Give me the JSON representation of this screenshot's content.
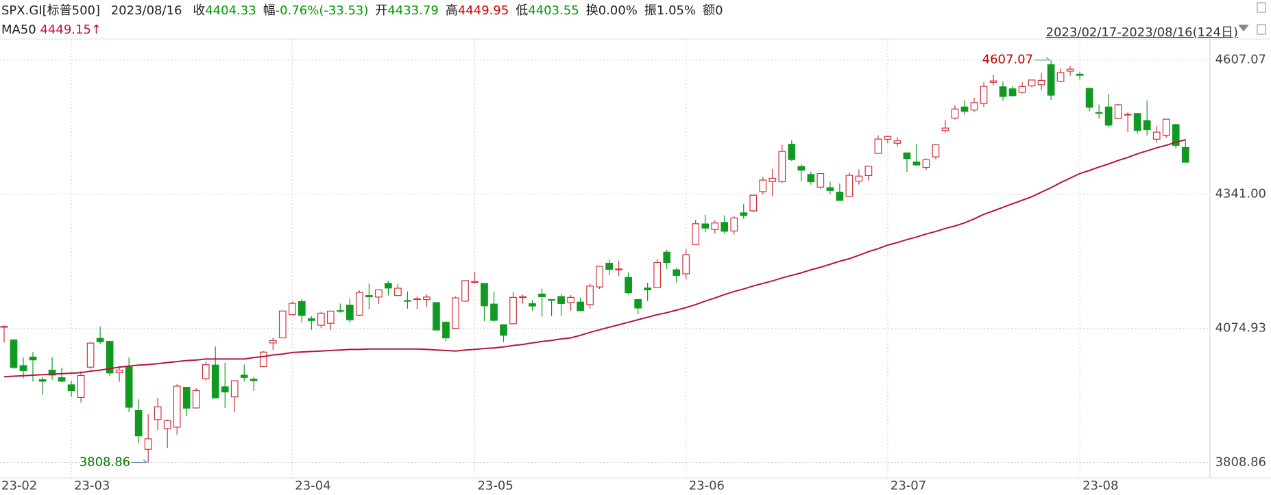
{
  "header": {
    "symbol": "SPX.GI[标普500]",
    "date": "2023/08/16",
    "fields": [
      {
        "key": "收",
        "value": "4404.33",
        "color": "#009900"
      },
      {
        "key": "幅",
        "value": "-0.76%(-33.53)",
        "color": "#009900"
      },
      {
        "key": "开",
        "value": "4433.79",
        "color": "#009900"
      },
      {
        "key": "高",
        "value": "4449.95",
        "color": "#cc0000"
      },
      {
        "key": "低",
        "value": "4403.55",
        "color": "#009900"
      },
      {
        "key": "换",
        "value": "0.00%",
        "color": "#222222"
      },
      {
        "key": "振",
        "value": "1.05%",
        "color": "#222222"
      },
      {
        "key": "额",
        "value": "0",
        "color": "#222222"
      }
    ],
    "range": "2023/02/17-2023/08/16(124日)"
  },
  "chart_data": {
    "type": "candlestick",
    "categories": [
      "23-02",
      null,
      null,
      null,
      null,
      null,
      null,
      "23-03",
      null,
      null,
      null,
      null,
      null,
      null,
      null,
      null,
      null,
      null,
      null,
      null,
      null,
      null,
      null,
      null,
      null,
      null,
      null,
      null,
      null,
      null,
      "23-04",
      null,
      null,
      null,
      null,
      null,
      null,
      null,
      null,
      null,
      null,
      null,
      null,
      null,
      null,
      null,
      null,
      null,
      null,
      "23-05",
      null,
      null,
      null,
      null,
      null,
      null,
      null,
      null,
      null,
      null,
      null,
      null,
      null,
      null,
      null,
      null,
      null,
      null,
      null,
      null,
      null,
      "23-06",
      null,
      null,
      null,
      null,
      null,
      null,
      null,
      null,
      null,
      null,
      null,
      null,
      null,
      null,
      null,
      null,
      null,
      null,
      null,
      null,
      "23-07",
      null,
      null,
      null,
      null,
      null,
      null,
      null,
      null,
      null,
      null,
      null,
      null,
      null,
      null,
      null,
      null,
      null,
      null,
      null,
      "23-08",
      null,
      null,
      null,
      null,
      null,
      null,
      null,
      null,
      null,
      null,
      null
    ],
    "open": [
      4077,
      4052,
      4001,
      4018,
      3973,
      3992,
      3977,
      3963,
      3938,
      3998,
      4055,
      4049,
      3987,
      3998,
      3912,
      3835,
      3894,
      3876,
      3879,
      3958,
      3917,
      3975,
      4002,
      3959,
      3939,
      3982,
      3974,
      3999,
      4046,
      4056,
      4102,
      4128,
      4094,
      4081,
      4085,
      4110,
      4121,
      4101,
      4140,
      4137,
      4164,
      4140,
      4130,
      4132,
      4132,
      4126,
      4087,
      4075,
      4129,
      4166,
      4164,
      4123,
      4082,
      4084,
      4136,
      4124,
      4143,
      4132,
      4138,
      4126,
      4127,
      4122,
      4157,
      4204,
      4191,
      4176,
      4132,
      4155,
      4156,
      4226,
      4191,
      4183,
      4241,
      4282,
      4271,
      4285,
      4268,
      4304,
      4308,
      4346,
      4366,
      4366,
      4440,
      4396,
      4380,
      4355,
      4354,
      4345,
      4337,
      4367,
      4378,
      4422,
      4450,
      4442,
      4423,
      4405,
      4394,
      4415,
      4467,
      4492,
      4514,
      4508,
      4521,
      4563,
      4554,
      4550,
      4543,
      4556,
      4558,
      4598,
      4565,
      4585,
      4579,
      4551,
      4503,
      4514,
      4491,
      4498,
      4501,
      4487,
      4450,
      4458,
      4479,
      4433.79
    ],
    "high": [
      4081,
      4052,
      4017,
      4028,
      3978,
      4018,
      3997,
      3971,
      3990,
      4048,
      4078,
      4050,
      4000,
      4017,
      3934,
      3905,
      3937,
      3894,
      3964,
      3959,
      3956,
      4009,
      4039,
      4007,
      3972,
      4003,
      3979,
      4030,
      4057,
      4110,
      4128,
      4133,
      4099,
      4108,
      4110,
      4124,
      4134,
      4150,
      4164,
      4152,
      4169,
      4163,
      4148,
      4138,
      4142,
      4126,
      4089,
      4138,
      4170,
      4187,
      4164,
      4148,
      4083,
      4147,
      4142,
      4131,
      4154,
      4133,
      4143,
      4141,
      4136,
      4164,
      4199,
      4212,
      4209,
      4186,
      4133,
      4165,
      4212,
      4231,
      4195,
      4232,
      4290,
      4300,
      4289,
      4299,
      4298,
      4322,
      4340,
      4375,
      4391,
      4439,
      4448,
      4400,
      4386,
      4382,
      4366,
      4362,
      4384,
      4390,
      4397,
      4458,
      4456,
      4454,
      4423,
      4441,
      4412,
      4440,
      4488,
      4517,
      4527,
      4532,
      4563,
      4578,
      4565,
      4555,
      4563,
      4568,
      4582,
      4607.07,
      4590,
      4595,
      4584,
      4552,
      4519,
      4540,
      4520,
      4504,
      4502,
      4527,
      4476,
      4490,
      4481,
      4449.95
    ],
    "low": [
      4047,
      3995,
      3976,
      3969,
      3943,
      3973,
      3968,
      3939,
      3928,
      3995,
      4044,
      3980,
      3969,
      3909,
      3847,
      3808.86,
      3873,
      3838,
      3864,
      3901,
      3916,
      3971,
      3936,
      3917,
      3909,
      3970,
      3951,
      3998,
      4032,
      4056,
      4102,
      4086,
      4072,
      4076,
      4072,
      4106,
      4086,
      4099,
      4113,
      4123,
      4140,
      4140,
      4114,
      4113,
      4117,
      4071,
      4049,
      4075,
      4127,
      4164,
      4089,
      4088,
      4048,
      4084,
      4124,
      4110,
      4098,
      4099,
      4099,
      4110,
      4109,
      4114,
      4153,
      4180,
      4179,
      4142,
      4103,
      4129,
      4155,
      4193,
      4166,
      4172,
      4241,
      4266,
      4263,
      4263,
      4261,
      4292,
      4305,
      4341,
      4337,
      4363,
      4407,
      4367,
      4360,
      4352,
      4341,
      4328,
      4336,
      4360,
      4368,
      4422,
      4442,
      4436,
      4385,
      4397,
      4389,
      4410,
      4463,
      4489,
      4499,
      4504,
      4514,
      4557,
      4527,
      4535,
      4541,
      4553,
      4547,
      4528,
      4563,
      4576,
      4568,
      4505,
      4491,
      4474,
      4491,
      4464,
      4461,
      4457,
      4443,
      4453,
      4432,
      4403.55
    ],
    "close": [
      4079.09,
      3997.34,
      3991.05,
      4012.32,
      3970.04,
      3982.24,
      3970.15,
      3951.39,
      3981.35,
      4045.64,
      4048.42,
      3986.37,
      3992.01,
      3918.32,
      3861.59,
      3855.76,
      3919.29,
      3891.93,
      3960.28,
      3916.64,
      3951.57,
      4002.87,
      3936.97,
      3948.72,
      3970.99,
      3977.53,
      3971.27,
      4027.81,
      4050.83,
      4109.31,
      4124.51,
      4100.6,
      4090.38,
      4105.02,
      4109.11,
      4108.94,
      4091.95,
      4146.22,
      4137.64,
      4151.32,
      4154.87,
      4154.52,
      4129.79,
      4133.52,
      4137.04,
      4071.63,
      4055.99,
      4135.35,
      4169.48,
      4167.87,
      4119.58,
      4090.75,
      4061.22,
      4136.25,
      4138.12,
      4119.17,
      4137.64,
      4130.62,
      4124.08,
      4136.28,
      4109.9,
      4158.77,
      4198.05,
      4191.98,
      4192.63,
      4145.58,
      4115.24,
      4151.28,
      4205.45,
      4205.52,
      4179.83,
      4221.02,
      4282.37,
      4273.79,
      4283.85,
      4267.52,
      4293.93,
      4298.86,
      4338.93,
      4369.01,
      4372.59,
      4425.84,
      4409.59,
      4388.71,
      4365.69,
      4381.89,
      4348.33,
      4328.82,
      4378.41,
      4376.86,
      4396.44,
      4450.38,
      4455.59,
      4446.82,
      4411.59,
      4398.95,
      4409.53,
      4439.26,
      4472.16,
      4510.04,
      4505.42,
      4522.79,
      4554.98,
      4565.72,
      4534.87,
      4536.34,
      4554.64,
      4567.46,
      4566.75,
      4537.41,
      4582.23,
      4588.96,
      4576.73,
      4513.39,
      4501.89,
      4478.03,
      4518.44,
      4499.38,
      4467.71,
      4468.83,
      4464.05,
      4489.72,
      4437.86,
      4404.33
    ],
    "up_color": "#d0303a",
    "down_color": "#119a22",
    "ma": {
      "name": "MA50",
      "color": "#b8143c",
      "last_label": "4449.15↑",
      "values": [
        3979,
        3980,
        3981,
        3982,
        3983,
        3984,
        3985,
        3986,
        3987,
        3990,
        3992,
        3995,
        3998,
        4000,
        4002,
        4003,
        4005,
        4007,
        4009,
        4011,
        4012,
        4014,
        4014,
        4014,
        4014,
        4014,
        4017,
        4019,
        4022,
        4024,
        4027,
        4028,
        4029,
        4030,
        4031,
        4032,
        4033,
        4033,
        4034,
        4034,
        4034,
        4034,
        4034,
        4034,
        4033,
        4032,
        4031,
        4030,
        4032,
        4033,
        4035,
        4036,
        4038,
        4041,
        4043,
        4046,
        4049,
        4051,
        4054,
        4056,
        4061,
        4067,
        4072,
        4077,
        4082,
        4087,
        4092,
        4097,
        4102,
        4106,
        4111,
        4116,
        4122,
        4129,
        4135,
        4142,
        4148,
        4153,
        4159,
        4164,
        4169,
        4175,
        4180,
        4185,
        4191,
        4196,
        4202,
        4208,
        4213,
        4220,
        4227,
        4233,
        4240,
        4245,
        4251,
        4256,
        4262,
        4267,
        4273,
        4278,
        4284,
        4292,
        4301,
        4308,
        4315,
        4322,
        4329,
        4336,
        4345,
        4354,
        4364,
        4373,
        4382,
        4388,
        4395,
        4401,
        4408,
        4414,
        4421,
        4427,
        4433,
        4438,
        4444,
        4449.15
      ]
    },
    "annotations": [
      {
        "value": 4607.07,
        "label": "4607.07",
        "color": "#c00000"
      },
      {
        "value": 3808.86,
        "label": "3808.86",
        "color": "#007a00"
      }
    ],
    "ylim": [
      3778.3,
      4648.8
    ],
    "yticks": [
      4607.07,
      {
        "value": 4341,
        "label": "4341.00"
      },
      4074.93,
      3808.86
    ],
    "grid": true
  }
}
